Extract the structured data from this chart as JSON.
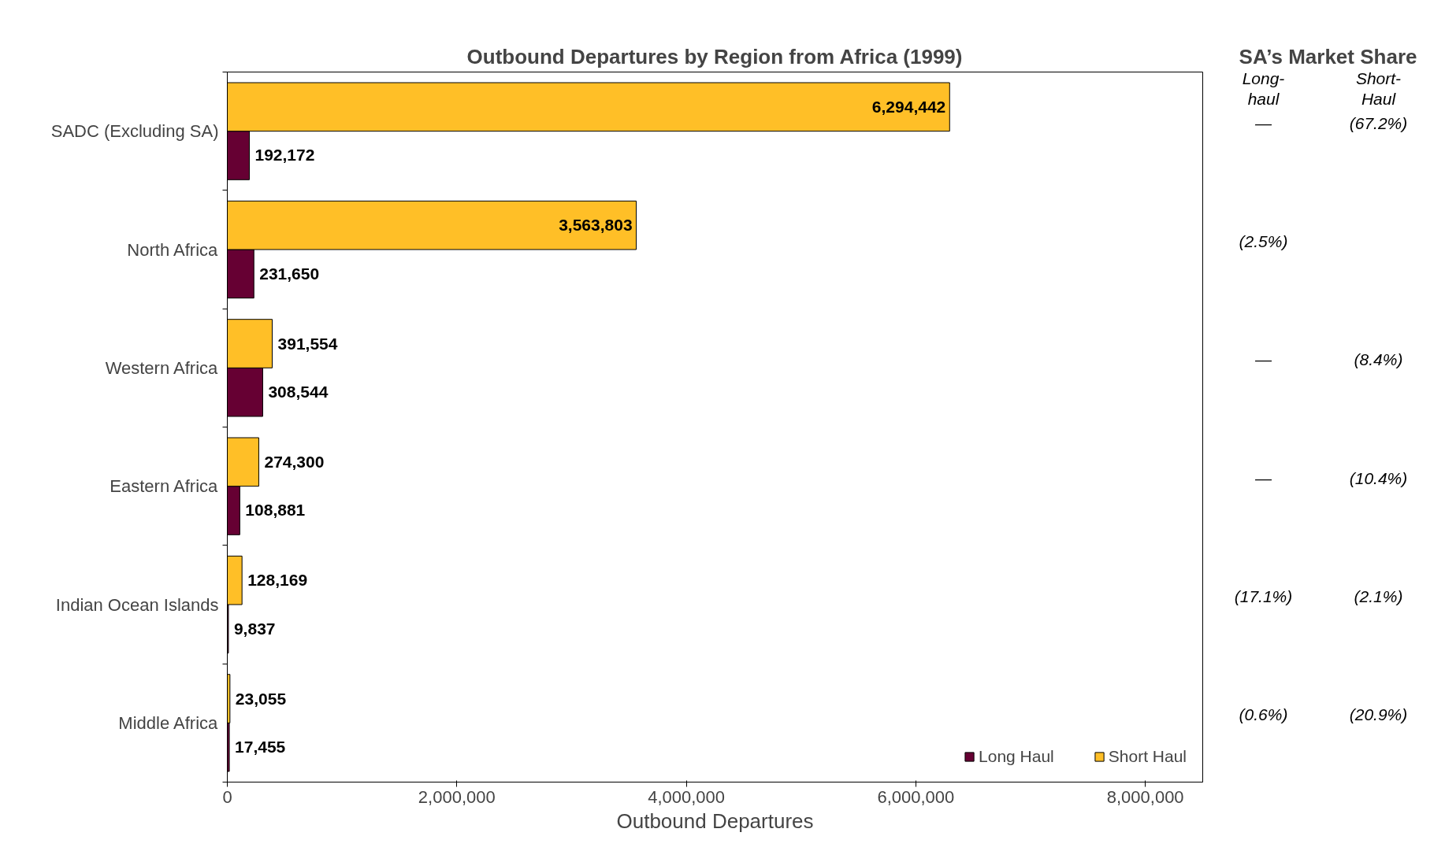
{
  "chart_data": {
    "type": "bar",
    "orientation": "horizontal",
    "title": "Outbound Departures by Region from Africa (1999)",
    "xlabel": "Outbound Departures",
    "categories": [
      "SADC (Excluding SA)",
      "North Africa",
      "Western Africa",
      "Eastern Africa",
      "Indian Ocean Islands",
      "Middle Africa"
    ],
    "series": [
      {
        "name": "Long Haul",
        "color": "#660033",
        "values": [
          192172,
          231650,
          308544,
          108881,
          9837,
          17455
        ],
        "value_labels": [
          "192,172",
          "231,650",
          "308,544",
          "108,881",
          "9,837",
          "17,455"
        ]
      },
      {
        "name": "Short Haul",
        "color": "#ffbf27",
        "values": [
          6294442,
          3563803,
          391554,
          274300,
          128169,
          23055
        ],
        "value_labels": [
          "6,294,442",
          "3,563,803",
          "391,554",
          "274,300",
          "128,169",
          "23,055"
        ]
      }
    ],
    "xlim": [
      0,
      8500000
    ],
    "xticks": [
      {
        "value": 0,
        "label": "0"
      },
      {
        "value": 2000000,
        "label": "2,000,000"
      },
      {
        "value": 4000000,
        "label": "4,000,000"
      },
      {
        "value": 6000000,
        "label": "6,000,000"
      },
      {
        "value": 8000000,
        "label": "8,000,000"
      }
    ],
    "legend": "bottom right",
    "grid": false,
    "annotations": [
      "SA’s Market Share",
      "Long-\nhaul",
      "Short-\nHaul",
      "—",
      "(67.2%)",
      "(2.5%)",
      "—",
      "(8.4%)",
      "—",
      "(10.4%)",
      "(17.1%)",
      "(2.1%)",
      "(0.6%)",
      "(20.9%)"
    ]
  }
}
